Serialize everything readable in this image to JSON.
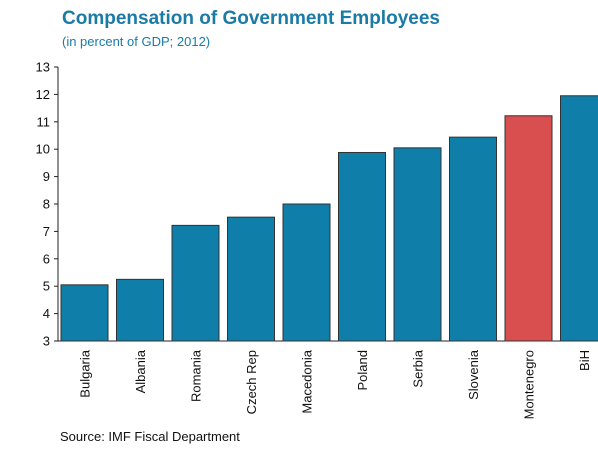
{
  "chart_data": {
    "type": "bar",
    "title": "Compensation of Government Employees",
    "subtitle": "(in percent of GDP; 2012)",
    "source": "Source: IMF Fiscal Department",
    "categories": [
      "Bulgaria",
      "Albania",
      "Romania",
      "Czech Rep",
      "Macedonia",
      "Poland",
      "Serbia",
      "Slovenia",
      "Montenegro",
      "BiH"
    ],
    "values": [
      5.05,
      5.25,
      7.22,
      7.52,
      8.0,
      9.88,
      10.05,
      10.44,
      11.22,
      11.95
    ],
    "ylim": [
      3,
      13
    ],
    "yticks": [
      3,
      4,
      5,
      6,
      7,
      8,
      9,
      10,
      11,
      12,
      13
    ],
    "grid": false,
    "colors": {
      "default": "#0f7ea8",
      "highlight": "#d94e4f",
      "stroke": "#333333",
      "title": "#1a7ba6"
    },
    "highlight_category": "Montenegro"
  }
}
